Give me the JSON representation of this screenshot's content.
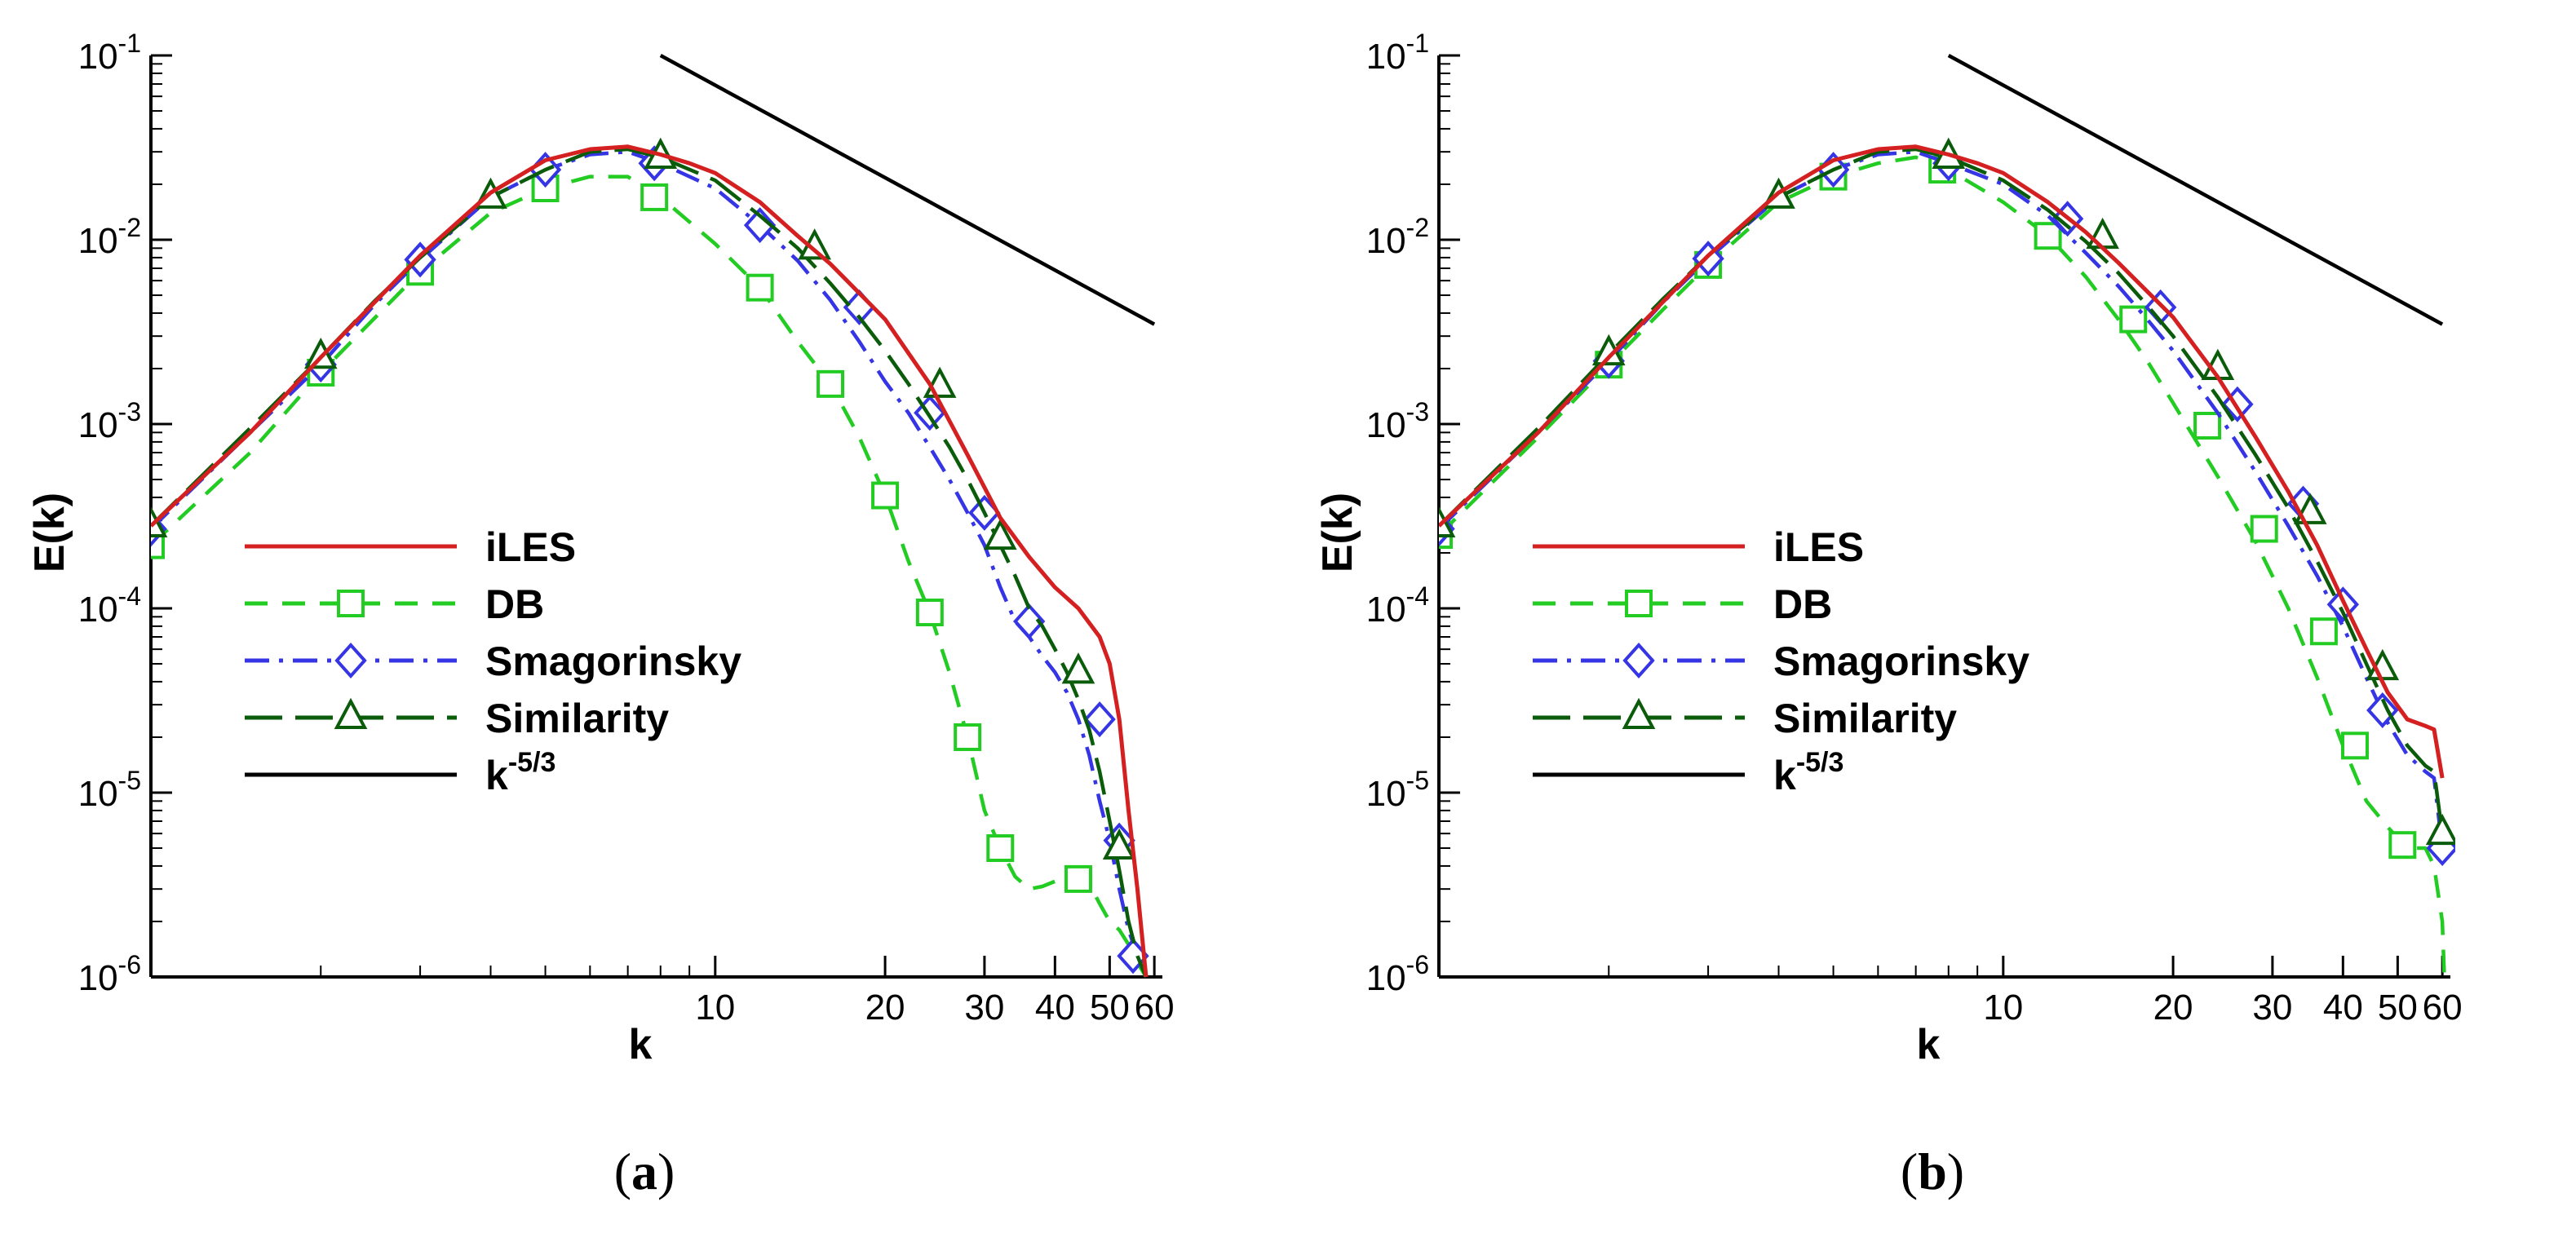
{
  "chart_data": [
    {
      "type": "line",
      "caption_open": "(",
      "caption_letter": "a",
      "caption_close": ")",
      "xlabel": "k",
      "ylabel": "E(k)",
      "xscale": "log",
      "yscale": "log",
      "xlim": [
        1,
        62
      ],
      "ylim": [
        1e-06,
        0.1
      ],
      "x_ticks": [
        {
          "value": 10,
          "label": "10"
        },
        {
          "value": 20,
          "label": "20"
        },
        {
          "value": 30,
          "label": "30"
        },
        {
          "value": 40,
          "label": "40"
        },
        {
          "value": 50,
          "label": "50"
        },
        {
          "value": 60,
          "label": "60"
        }
      ],
      "y_ticks": [
        {
          "value": 1e-06,
          "base": "10",
          "exp": "-6"
        },
        {
          "value": 1e-05,
          "base": "10",
          "exp": "-5"
        },
        {
          "value": 0.0001,
          "base": "10",
          "exp": "-4"
        },
        {
          "value": 0.001,
          "base": "10",
          "exp": "-3"
        },
        {
          "value": 0.01,
          "base": "10",
          "exp": "-2"
        },
        {
          "value": 0.1,
          "base": "10",
          "exp": "-1"
        }
      ],
      "legend": {
        "position": "left-center"
      },
      "series": [
        {
          "name": "iLES",
          "color": "#d42020",
          "style": "solid",
          "marker": "none",
          "x": [
            1,
            1.5,
            2,
            3,
            4,
            5,
            6,
            7,
            8,
            9,
            10,
            12,
            14,
            16,
            20,
            24,
            28,
            32,
            36,
            40,
            44,
            48,
            50,
            52,
            54,
            56,
            58
          ],
          "y": [
            0.00028,
            0.0009,
            0.0023,
            0.0082,
            0.018,
            0.027,
            0.031,
            0.032,
            0.029,
            0.026,
            0.023,
            0.016,
            0.0105,
            0.0074,
            0.0037,
            0.00165,
            0.00068,
            0.00031,
            0.00019,
            0.00013,
            0.0001,
            7e-05,
            5e-05,
            2.5e-05,
            8e-06,
            3e-06,
            1e-06
          ]
        },
        {
          "name": "DB",
          "color": "#22cc22",
          "style": "dashed",
          "marker": "square",
          "x": [
            1,
            1.5,
            2,
            2.5,
            3,
            4,
            5,
            6,
            7,
            8,
            10,
            12,
            14,
            16,
            18,
            20,
            22,
            24,
            26,
            28,
            30,
            32,
            34,
            36,
            38,
            40,
            42,
            44,
            46,
            48,
            50,
            52,
            54,
            56,
            58
          ],
          "y": [
            0.00022,
            0.0007,
            0.0019,
            0.0038,
            0.0067,
            0.014,
            0.019,
            0.022,
            0.022,
            0.017,
            0.0095,
            0.0055,
            0.0028,
            0.00165,
            0.00085,
            0.00041,
            0.00018,
            9.5e-05,
            4.5e-05,
            2e-05,
            8e-06,
            5e-06,
            3.5e-06,
            3e-06,
            3.1e-06,
            3.3e-06,
            3.4e-06,
            3.5e-06,
            3.2e-06,
            2.5e-06,
            2e-06,
            1.8e-06,
            1.5e-06,
            1.2e-06,
            1e-06
          ],
          "markers_x": [
            1,
            2,
            3,
            5,
            7.8,
            12,
            16,
            20,
            24,
            28,
            32,
            44
          ],
          "markers_y": [
            0.00022,
            0.0019,
            0.0067,
            0.019,
            0.017,
            0.0055,
            0.00165,
            0.00041,
            9.5e-05,
            2e-05,
            5e-06,
            3.4e-06
          ]
        },
        {
          "name": "Smagorinsky",
          "color": "#3535e6",
          "style": "dashdot",
          "marker": "diamond",
          "x": [
            1,
            1.5,
            2,
            2.5,
            3,
            4,
            5,
            6,
            7,
            8,
            10,
            12,
            14,
            16,
            18,
            20,
            22,
            24,
            26,
            28,
            30,
            32,
            34,
            36,
            38,
            40,
            42,
            44,
            46,
            48,
            50,
            52,
            54,
            56,
            58
          ],
          "y": [
            0.00027,
            0.0009,
            0.0021,
            0.0045,
            0.0078,
            0.017,
            0.024,
            0.029,
            0.03,
            0.026,
            0.019,
            0.012,
            0.0077,
            0.0047,
            0.0028,
            0.0017,
            0.00115,
            0.00075,
            0.0005,
            0.00033,
            0.00022,
            0.00013,
            8.5e-05,
            7e-05,
            5.5e-05,
            4.5e-05,
            3.5e-05,
            2.5e-05,
            1.6e-05,
            9e-06,
            5.5e-06,
            3e-06,
            1.8e-06,
            1.3e-06,
            1e-06
          ],
          "markers_x": [
            1,
            2,
            3,
            5,
            7.8,
            12,
            18,
            24,
            30,
            36,
            48,
            52,
            55
          ],
          "markers_y": [
            0.00027,
            0.0021,
            0.0078,
            0.024,
            0.026,
            0.012,
            0.0043,
            0.00115,
            0.00033,
            8.5e-05,
            2.5e-05,
            5.5e-06,
            1.3e-06
          ]
        },
        {
          "name": "Similarity",
          "color": "#0a5c0a",
          "style": "longdash",
          "marker": "triangle",
          "x": [
            1,
            1.5,
            2,
            2.5,
            3,
            4,
            5,
            6,
            7,
            8,
            10,
            12,
            14,
            16,
            18,
            20,
            22,
            24,
            26,
            28,
            30,
            32,
            34,
            36,
            38,
            40,
            42,
            44,
            46,
            48,
            50,
            52,
            54,
            56,
            58
          ],
          "y": [
            0.00028,
            0.00095,
            0.0023,
            0.0047,
            0.008,
            0.017,
            0.024,
            0.03,
            0.031,
            0.028,
            0.021,
            0.0135,
            0.009,
            0.0058,
            0.0038,
            0.0025,
            0.00165,
            0.0011,
            0.00075,
            0.0005,
            0.00033,
            0.00022,
            0.00015,
            0.0001,
            8e-05,
            6e-05,
            4.5e-05,
            3.2e-05,
            2.2e-05,
            1.3e-05,
            7e-06,
            3.8e-06,
            2e-06,
            1.3e-06,
            1e-06
          ],
          "markers_x": [
            1,
            2,
            4,
            8,
            15,
            25,
            32,
            44,
            52
          ],
          "markers_y": [
            0.00028,
            0.0023,
            0.017,
            0.028,
            0.009,
            0.0016,
            0.00024,
            4.5e-05,
            5e-06
          ]
        },
        {
          "name": "k⁻⁵ᐟ³",
          "legend_base": "k",
          "legend_exp": "-5/3",
          "color": "#000000",
          "style": "solid",
          "marker": "none",
          "x": [
            8,
            60
          ],
          "y": [
            0.1,
            0.00348
          ]
        }
      ]
    },
    {
      "type": "line",
      "caption_open": "(",
      "caption_letter": "b",
      "caption_close": ")",
      "xlabel": "k",
      "ylabel": "E(k)",
      "xscale": "log",
      "yscale": "log",
      "xlim": [
        1,
        62
      ],
      "ylim": [
        1e-06,
        0.1
      ],
      "x_ticks": [
        {
          "value": 10,
          "label": "10"
        },
        {
          "value": 20,
          "label": "20"
        },
        {
          "value": 30,
          "label": "30"
        },
        {
          "value": 40,
          "label": "40"
        },
        {
          "value": 50,
          "label": "50"
        },
        {
          "value": 60,
          "label": "60"
        }
      ],
      "y_ticks": [
        {
          "value": 1e-06,
          "base": "10",
          "exp": "-6"
        },
        {
          "value": 1e-05,
          "base": "10",
          "exp": "-5"
        },
        {
          "value": 0.0001,
          "base": "10",
          "exp": "-4"
        },
        {
          "value": 0.001,
          "base": "10",
          "exp": "-3"
        },
        {
          "value": 0.01,
          "base": "10",
          "exp": "-2"
        },
        {
          "value": 0.1,
          "base": "10",
          "exp": "-1"
        }
      ],
      "legend": {
        "position": "left-center"
      },
      "series": [
        {
          "name": "iLES",
          "color": "#d42020",
          "style": "solid",
          "marker": "none",
          "x": [
            1,
            1.5,
            2,
            3,
            4,
            5,
            6,
            7,
            8,
            9,
            10,
            12,
            14,
            16,
            20,
            24,
            28,
            32,
            36,
            40,
            44,
            48,
            52,
            56,
            58,
            60
          ],
          "y": [
            0.00028,
            0.0009,
            0.0023,
            0.0082,
            0.018,
            0.027,
            0.031,
            0.032,
            0.029,
            0.026,
            0.023,
            0.016,
            0.011,
            0.0075,
            0.0038,
            0.0018,
            0.00085,
            0.00043,
            0.00022,
            0.00011,
            6e-05,
            3.5e-05,
            2.5e-05,
            2.3e-05,
            2.2e-05,
            1.2e-05
          ]
        },
        {
          "name": "DB",
          "color": "#22cc22",
          "style": "dashed",
          "marker": "square",
          "x": [
            1,
            1.5,
            2,
            2.5,
            3,
            4,
            5,
            6,
            7,
            8,
            10,
            12,
            14,
            16,
            18,
            20,
            24,
            28,
            32,
            36,
            40,
            44,
            48,
            52,
            56,
            58,
            60,
            60.5
          ],
          "y": [
            0.00025,
            0.00085,
            0.0021,
            0.0042,
            0.0073,
            0.016,
            0.022,
            0.026,
            0.028,
            0.024,
            0.016,
            0.0105,
            0.0063,
            0.0037,
            0.0022,
            0.0013,
            0.00052,
            0.00023,
            0.0001,
            4.2e-05,
            1.8e-05,
            9e-06,
            6.5e-06,
            5e-06,
            5e-06,
            4e-06,
            2e-06,
            1e-06
          ],
          "markers_x": [
            1,
            2,
            3,
            5,
            7.8,
            12,
            17,
            23,
            29,
            37,
            42,
            51
          ],
          "markers_y": [
            0.00025,
            0.0021,
            0.0073,
            0.022,
            0.024,
            0.0105,
            0.0037,
            0.00098,
            0.00027,
            7.5e-05,
            1.8e-05,
            5.2e-06
          ]
        },
        {
          "name": "Smagorinsky",
          "color": "#3535e6",
          "style": "dashdot",
          "marker": "diamond",
          "x": [
            1,
            1.5,
            2,
            2.5,
            3,
            4,
            5,
            6,
            7,
            8,
            10,
            12,
            14,
            16,
            18,
            20,
            24,
            28,
            32,
            36,
            40,
            44,
            48,
            52,
            56,
            58,
            60
          ],
          "y": [
            0.00027,
            0.0009,
            0.0022,
            0.0046,
            0.0079,
            0.017,
            0.024,
            0.029,
            0.03,
            0.026,
            0.02,
            0.0135,
            0.0085,
            0.0056,
            0.0037,
            0.0025,
            0.00115,
            0.00055,
            0.00028,
            0.00015,
            8e-05,
            4.2e-05,
            2.4e-05,
            1.6e-05,
            1.3e-05,
            1.2e-05,
            5e-06
          ],
          "markers_x": [
            1,
            2,
            3,
            5,
            8,
            13,
            19,
            26,
            34,
            40,
            47,
            60
          ],
          "markers_y": [
            0.00027,
            0.0022,
            0.0079,
            0.024,
            0.026,
            0.013,
            0.0043,
            0.00128,
            0.00037,
            0.000105,
            2.8e-05,
            5e-06
          ]
        },
        {
          "name": "Similarity",
          "color": "#0a5c0a",
          "style": "longdash",
          "marker": "triangle",
          "x": [
            1,
            1.5,
            2,
            2.5,
            3,
            4,
            5,
            6,
            7,
            8,
            10,
            12,
            14,
            16,
            18,
            20,
            24,
            28,
            32,
            36,
            40,
            44,
            48,
            52,
            56,
            58,
            60
          ],
          "y": [
            0.00028,
            0.00095,
            0.0024,
            0.0048,
            0.0082,
            0.017,
            0.024,
            0.03,
            0.031,
            0.028,
            0.021,
            0.0145,
            0.0098,
            0.0066,
            0.0044,
            0.003,
            0.0014,
            0.00068,
            0.00035,
            0.00018,
            9.5e-05,
            5e-05,
            2.8e-05,
            1.8e-05,
            1.4e-05,
            1.3e-05,
            6e-06
          ],
          "markers_x": [
            1,
            2,
            4,
            8,
            15,
            24,
            35,
            47,
            60
          ],
          "markers_y": [
            0.00028,
            0.0024,
            0.017,
            0.028,
            0.0103,
            0.002,
            0.00033,
            4.7e-05,
            6e-06
          ]
        },
        {
          "name": "k⁻⁵ᐟ³",
          "legend_base": "k",
          "legend_exp": "-5/3",
          "color": "#000000",
          "style": "solid",
          "marker": "none",
          "x": [
            8,
            60
          ],
          "y": [
            0.1,
            0.00348
          ]
        }
      ]
    }
  ]
}
